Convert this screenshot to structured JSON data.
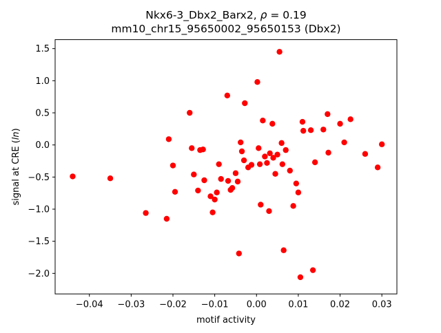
{
  "chart_data": {
    "type": "scatter",
    "title": {
      "pre": "Nkx6-3_Dbx2_Barx2, ",
      "italic": "ρ",
      "post": " = 0.19"
    },
    "subtitle": "mm10_chr15_95650002_95650153 (Dbx2)",
    "xlabel": "motif activity",
    "ylabel": {
      "pre": "signal at CRE (",
      "italic": "ln",
      "post": ")"
    },
    "xlim": [
      -0.0482,
      0.0336
    ],
    "ylim": [
      -2.32,
      1.64
    ],
    "grid": false,
    "legend": "none",
    "marker_color": "#ff0000",
    "marker_radius": 4.2,
    "xticks": [
      {
        "v": -0.04,
        "label": "−0.04"
      },
      {
        "v": -0.03,
        "label": "−0.03"
      },
      {
        "v": -0.02,
        "label": "−0.02"
      },
      {
        "v": -0.01,
        "label": "−0.01"
      },
      {
        "v": 0.0,
        "label": "0.00"
      },
      {
        "v": 0.01,
        "label": "0.01"
      },
      {
        "v": 0.02,
        "label": "0.02"
      },
      {
        "v": 0.03,
        "label": "0.03"
      }
    ],
    "yticks": [
      {
        "v": 1.5,
        "label": "1.5"
      },
      {
        "v": 1.0,
        "label": "1.0"
      },
      {
        "v": 0.5,
        "label": "0.5"
      },
      {
        "v": 0.0,
        "label": "0.0"
      },
      {
        "v": -0.5,
        "label": "−0.5"
      },
      {
        "v": -1.0,
        "label": "−1.0"
      },
      {
        "v": -1.5,
        "label": "−1.5"
      },
      {
        "v": -2.0,
        "label": "−2.0"
      }
    ],
    "points": [
      [
        -0.044,
        -0.49
      ],
      [
        -0.035,
        -0.52
      ],
      [
        -0.0265,
        -1.06
      ],
      [
        -0.0215,
        -1.15
      ],
      [
        -0.021,
        0.09
      ],
      [
        -0.02,
        -0.32
      ],
      [
        -0.0195,
        -0.73
      ],
      [
        -0.016,
        0.5
      ],
      [
        -0.0155,
        -0.05
      ],
      [
        -0.015,
        -0.46
      ],
      [
        -0.014,
        -0.71
      ],
      [
        -0.0135,
        -0.08
      ],
      [
        -0.0128,
        -0.07
      ],
      [
        -0.0125,
        -0.55
      ],
      [
        -0.011,
        -0.8
      ],
      [
        -0.0105,
        -1.05
      ],
      [
        -0.01,
        -0.85
      ],
      [
        -0.0095,
        -0.74
      ],
      [
        -0.009,
        -0.3
      ],
      [
        -0.0085,
        -0.53
      ],
      [
        -0.007,
        0.77
      ],
      [
        -0.0068,
        -0.56
      ],
      [
        -0.0062,
        -0.7
      ],
      [
        -0.0058,
        -0.67
      ],
      [
        -0.005,
        -0.44
      ],
      [
        -0.0045,
        -0.57
      ],
      [
        -0.0042,
        -1.69
      ],
      [
        -0.0038,
        0.04
      ],
      [
        -0.0035,
        -0.1
      ],
      [
        -0.003,
        -0.24
      ],
      [
        -0.0028,
        0.65
      ],
      [
        -0.002,
        -0.35
      ],
      [
        -0.0012,
        -0.31
      ],
      [
        0.0002,
        0.98
      ],
      [
        0.0005,
        -0.05
      ],
      [
        0.0008,
        -0.3
      ],
      [
        0.001,
        -0.93
      ],
      [
        0.0015,
        0.38
      ],
      [
        0.002,
        -0.18
      ],
      [
        0.0025,
        -0.28
      ],
      [
        0.003,
        -1.03
      ],
      [
        0.0032,
        -0.13
      ],
      [
        0.0038,
        0.33
      ],
      [
        0.004,
        -0.2
      ],
      [
        0.0045,
        -0.45
      ],
      [
        0.005,
        -0.15
      ],
      [
        0.0055,
        1.45
      ],
      [
        0.006,
        0.03
      ],
      [
        0.0062,
        -0.3
      ],
      [
        0.0065,
        -1.64
      ],
      [
        0.007,
        -0.08
      ],
      [
        0.008,
        -0.4
      ],
      [
        0.0088,
        -0.95
      ],
      [
        0.0095,
        -0.6
      ],
      [
        0.01,
        -0.74
      ],
      [
        0.0105,
        -2.06
      ],
      [
        0.011,
        0.36
      ],
      [
        0.0112,
        0.22
      ],
      [
        0.013,
        0.23
      ],
      [
        0.0135,
        -1.95
      ],
      [
        0.014,
        -0.27
      ],
      [
        0.016,
        0.24
      ],
      [
        0.017,
        0.48
      ],
      [
        0.0172,
        -0.12
      ],
      [
        0.02,
        0.33
      ],
      [
        0.021,
        0.04
      ],
      [
        0.0225,
        0.4
      ],
      [
        0.026,
        -0.14
      ],
      [
        0.029,
        -0.35
      ],
      [
        0.03,
        0.01
      ]
    ]
  }
}
